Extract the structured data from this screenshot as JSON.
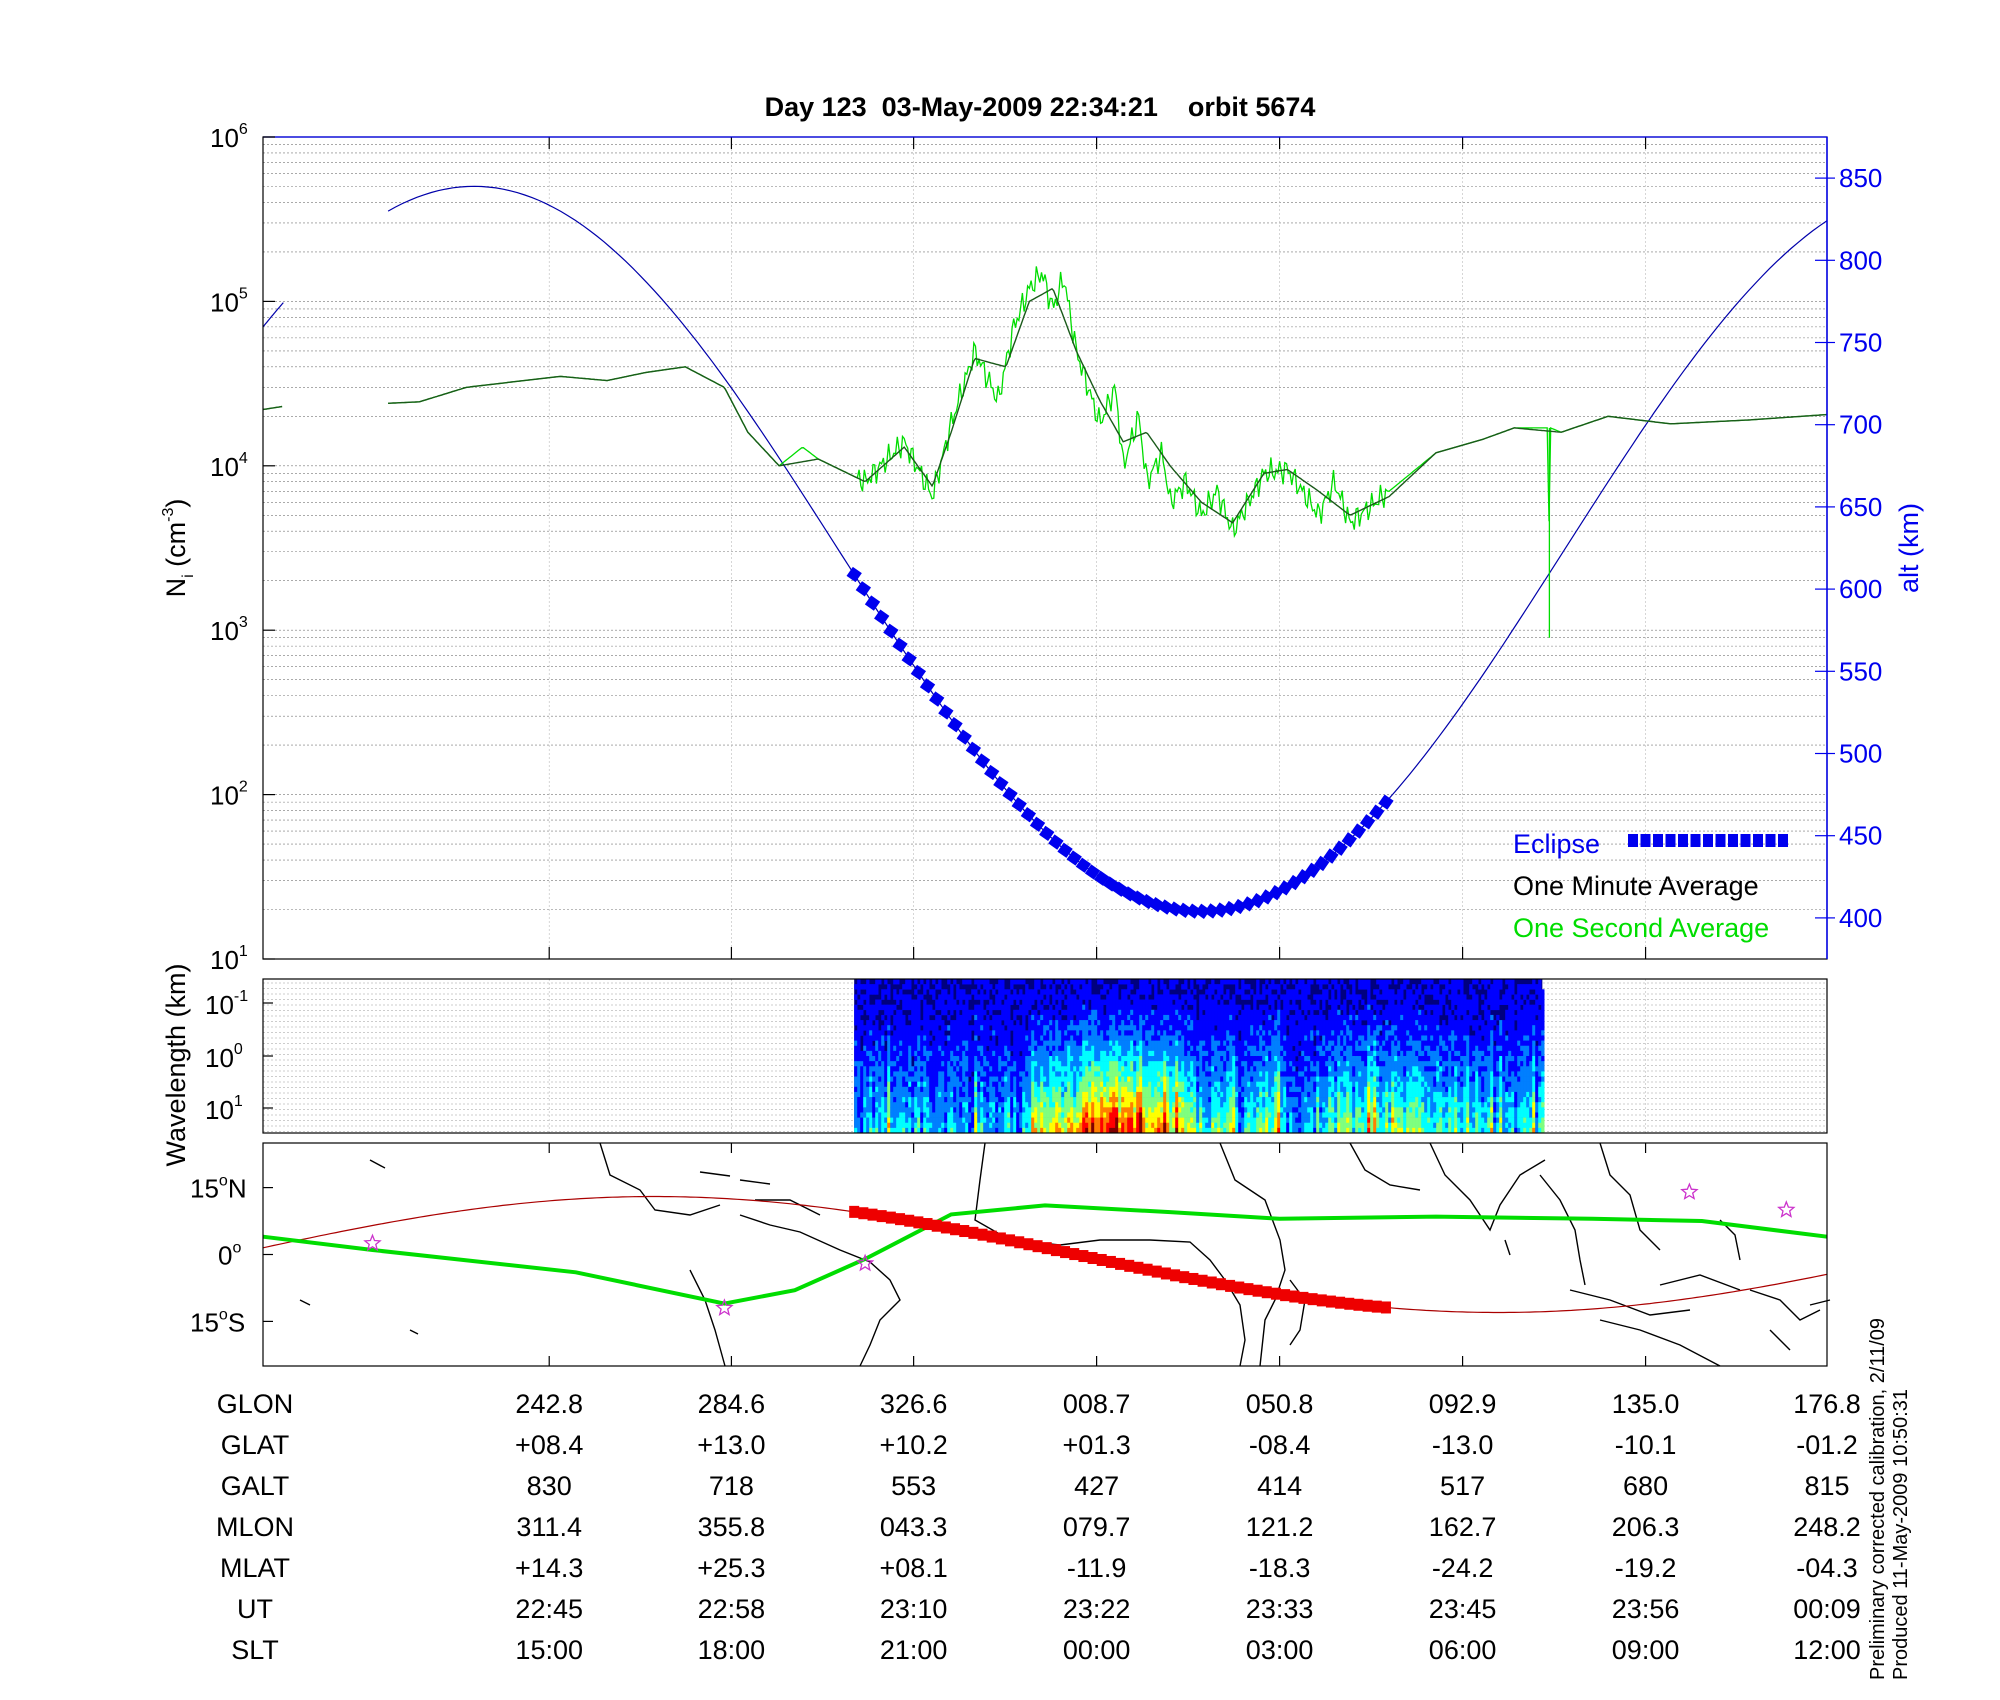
{
  "chart_data": [
    {
      "type": "line",
      "title": "Day 123  03-May-2009 22:34:21    orbit 5674",
      "ylabel": "N",
      "ylabel_sub": "i",
      "ylabel_unit_open": " (cm",
      "ylabel_unit_exp": "-3",
      "ylabel_unit_close": ")",
      "y_scale": "log",
      "ylim": [
        10,
        1000000
      ],
      "y_ticks": [
        {
          "base": "10",
          "exp": "1",
          "value": 10
        },
        {
          "base": "10",
          "exp": "2",
          "value": 100
        },
        {
          "base": "10",
          "exp": "3",
          "value": 1000
        },
        {
          "base": "10",
          "exp": "4",
          "value": 10000
        },
        {
          "base": "10",
          "exp": "5",
          "value": 100000
        },
        {
          "base": "10",
          "exp": "6",
          "value": 1000000
        }
      ],
      "y2label": "alt (km)",
      "y2lim": [
        375,
        875
      ],
      "y2_ticks": [
        "400",
        "450",
        "500",
        "550",
        "600",
        "650",
        "700",
        "750",
        "800",
        "850"
      ],
      "grid": true,
      "legend_position": "bottom-right",
      "legend": [
        {
          "name": "Eclipse",
          "color": "#0000ee"
        },
        {
          "name": "One Minute Average",
          "color": "#000000"
        },
        {
          "name": "One Second Average",
          "color": "#00dd00"
        }
      ],
      "series": [
        {
          "name": "One Minute Average",
          "color": "#1a5a1a",
          "x": [
            0,
            0.013,
            0.08,
            0.1,
            0.13,
            0.155,
            0.19,
            0.22,
            0.245,
            0.27,
            0.295,
            0.31,
            0.33,
            0.355,
            0.385,
            0.41,
            0.428,
            0.44,
            0.455,
            0.475,
            0.49,
            0.505,
            0.52,
            0.535,
            0.55,
            0.565,
            0.58,
            0.6,
            0.62,
            0.64,
            0.655,
            0.675,
            0.695,
            0.72,
            0.75,
            0.78,
            0.8,
            0.83,
            0.86,
            0.9,
            0.95,
            1.0
          ],
          "values": [
            22000,
            23000,
            24000,
            24500,
            30000,
            32000,
            35000,
            33000,
            37000,
            40000,
            30000,
            16000,
            10000,
            11000,
            8000,
            13000,
            7500,
            16000,
            45000,
            40000,
            100000,
            120000,
            50000,
            25000,
            14000,
            16000,
            10000,
            6000,
            4500,
            9000,
            9500,
            7000,
            5000,
            6500,
            12000,
            14500,
            17000,
            16000,
            20000,
            18000,
            19000,
            20500
          ]
        },
        {
          "name": "One Second Average",
          "color": "#00dd00",
          "x": [
            0,
            0.013,
            0.08,
            0.1,
            0.13,
            0.155,
            0.19,
            0.22,
            0.245,
            0.27,
            0.295,
            0.31,
            0.33,
            0.345,
            0.355,
            0.385,
            0.41,
            0.428,
            0.44,
            0.455,
            0.47,
            0.48,
            0.49,
            0.498,
            0.505,
            0.512,
            0.52,
            0.535,
            0.545,
            0.55,
            0.56,
            0.565,
            0.575,
            0.58,
            0.59,
            0.6,
            0.61,
            0.62,
            0.64,
            0.655,
            0.675,
            0.685,
            0.695,
            0.72,
            0.75,
            0.78,
            0.8,
            0.822,
            0.8225,
            0.8232,
            0.83,
            0.86,
            0.9,
            0.95,
            1.0
          ],
          "values": [
            22000,
            23000,
            24000,
            24500,
            30000,
            32000,
            35000,
            33000,
            37000,
            40000,
            30000,
            16000,
            10000,
            13000,
            11000,
            8000,
            14000,
            6500,
            18000,
            50000,
            25000,
            70000,
            120000,
            150000,
            90000,
            140000,
            50000,
            18000,
            30000,
            10000,
            20000,
            8000,
            12000,
            6000,
            8000,
            5000,
            7000,
            4000,
            9000,
            9500,
            5000,
            8000,
            4500,
            7000,
            12000,
            14500,
            17000,
            17000,
            900,
            17000,
            16000,
            20000,
            18000,
            19000,
            20500
          ]
        },
        {
          "name": "alt (km)",
          "axis": "right",
          "color": "#0000aa",
          "orbit_peak_x": 0.135,
          "orbit_peak_alt": 845,
          "orbit_trough_x": 0.6,
          "orbit_trough_alt": 404,
          "gap_x": [
            0.013,
            0.08
          ]
        },
        {
          "name": "Eclipse",
          "axis": "right",
          "color": "#0000ee",
          "x_range": [
            0.378,
            0.718
          ]
        }
      ]
    },
    {
      "type": "heatmap",
      "ylabel": "Wavelength (km)",
      "y_ticks": [
        {
          "base": "10",
          "exp": "-1"
        },
        {
          "base": "10",
          "exp": "0"
        },
        {
          "base": "10",
          "exp": "1"
        }
      ],
      "x_range": [
        0.378,
        0.818
      ],
      "colormap": [
        "#00007f",
        "#0000ff",
        "#007fff",
        "#00ffff",
        "#7fff7f",
        "#ffff00",
        "#ff7f00",
        "#ff0000",
        "#7f0000"
      ]
    },
    {
      "type": "map",
      "y_ticks": [
        {
          "value": "15",
          "unit": "o",
          "hemi": "N"
        },
        {
          "value": "0",
          "unit": "o",
          "hemi": ""
        },
        {
          "value": "15",
          "unit": "o",
          "hemi": "S"
        }
      ],
      "ylim": [
        -25,
        25
      ],
      "track_color": "#aa0000",
      "magnetic_equator_color": "#00dd00",
      "eclipse_color": "#ee0000",
      "eclipse_x_range": [
        0.378,
        0.718
      ],
      "star_color": "#cc33cc",
      "stars": [
        {
          "x": 0.07,
          "lat": 2.5
        },
        {
          "x": 0.295,
          "lat": -12
        },
        {
          "x": 0.385,
          "lat": -2
        },
        {
          "x": 0.912,
          "lat": 14
        },
        {
          "x": 0.974,
          "lat": 10
        }
      ]
    }
  ],
  "table": {
    "labels": [
      "GLON",
      "GLAT",
      "GALT",
      "MLON",
      "MLAT",
      "UT",
      "SLT"
    ],
    "columns": [
      [
        "242.8",
        "+08.4",
        "830",
        "311.4",
        "+14.3",
        "22:45",
        "15:00"
      ],
      [
        "284.6",
        "+13.0",
        "718",
        "355.8",
        "+25.3",
        "22:58",
        "18:00"
      ],
      [
        "326.6",
        "+10.2",
        "553",
        "043.3",
        "+08.1",
        "23:10",
        "21:00"
      ],
      [
        "008.7",
        "+01.3",
        "427",
        "079.7",
        "-11.9",
        "23:22",
        "00:00"
      ],
      [
        "050.8",
        "-08.4",
        "414",
        "121.2",
        "-18.3",
        "23:33",
        "03:00"
      ],
      [
        "092.9",
        "-13.0",
        "517",
        "162.7",
        "-24.2",
        "23:45",
        "06:00"
      ],
      [
        "135.0",
        "-10.1",
        "680",
        "206.3",
        "-19.2",
        "23:56",
        "09:00"
      ],
      [
        "176.8",
        "-01.2",
        "815",
        "248.2",
        "-04.3",
        "00:09",
        "12:00"
      ]
    ]
  },
  "footer": {
    "line1": "Preliminary corrected calibration, 2/11/09",
    "line2": "Produced 11-May-2009 10:50:31"
  }
}
